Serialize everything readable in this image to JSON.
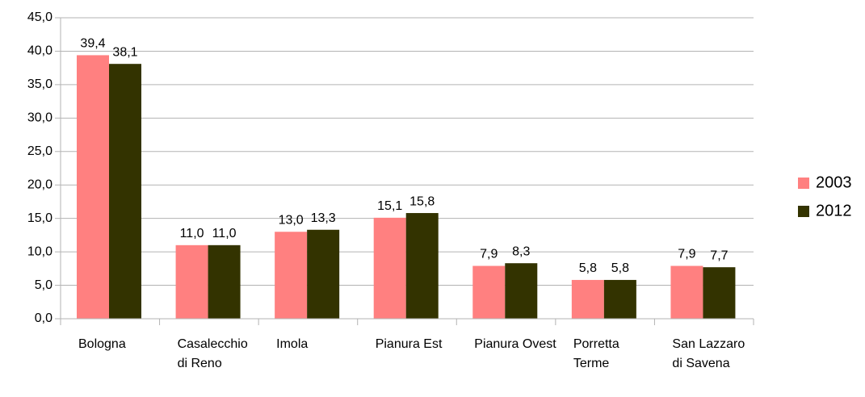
{
  "chart_data": {
    "type": "bar",
    "categories": [
      "Bologna",
      "Casalecchio di Reno",
      "Imola",
      "Pianura Est",
      "Pianura Ovest",
      "Porretta Terme",
      "San Lazzaro di Savena"
    ],
    "series": [
      {
        "name": "2003",
        "color": "#ff8080",
        "values": [
          39.4,
          11.0,
          13.0,
          15.1,
          7.9,
          5.8,
          7.9
        ],
        "value_labels": [
          "39,4",
          "11,0",
          "13,0",
          "15,1",
          "7,9",
          "5,8",
          "7,9"
        ]
      },
      {
        "name": "2012",
        "color": "#333300",
        "values": [
          38.1,
          11.0,
          13.3,
          15.8,
          8.3,
          5.8,
          7.7
        ],
        "value_labels": [
          "38,1",
          "11,0",
          "13,3",
          "15,8",
          "8,3",
          "5,8",
          "7,7"
        ]
      }
    ],
    "ylim": [
      0,
      45
    ],
    "yticks": [
      {
        "value": 0,
        "label": "0,0"
      },
      {
        "value": 5,
        "label": "5,0"
      },
      {
        "value": 10,
        "label": "10,0"
      },
      {
        "value": 15,
        "label": "15,0"
      },
      {
        "value": 20,
        "label": "20,0"
      },
      {
        "value": 25,
        "label": "25,0"
      },
      {
        "value": 30,
        "label": "30,0"
      },
      {
        "value": 35,
        "label": "35,0"
      },
      {
        "value": 40,
        "label": "40,0"
      },
      {
        "value": 45,
        "label": "45,0"
      }
    ],
    "grid": true,
    "legend": "right"
  }
}
